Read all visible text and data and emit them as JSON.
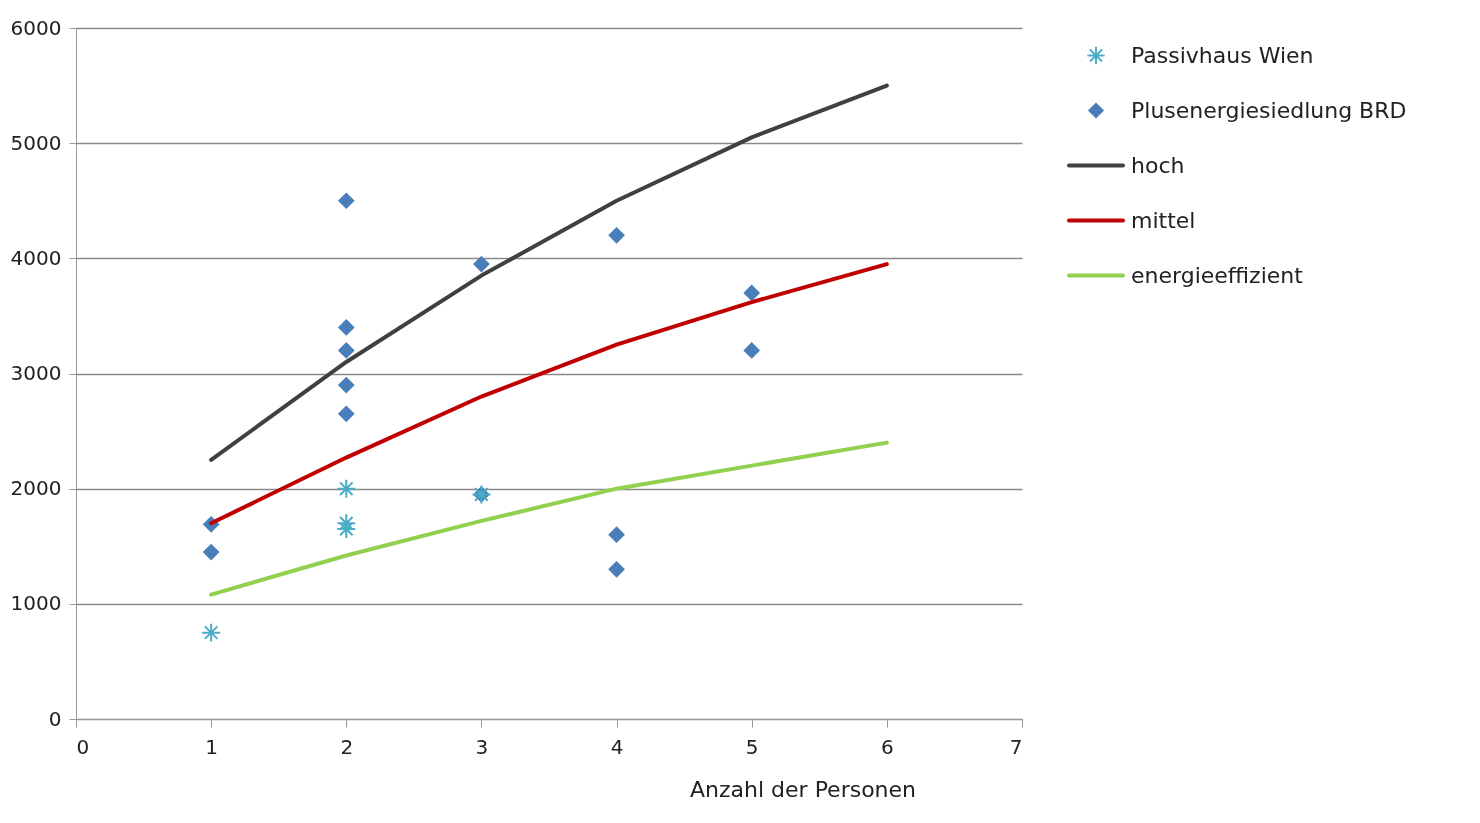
{
  "chart_data": {
    "type": "scatter",
    "xlabel": "Anzahl der Personen",
    "xlim": [
      0,
      7
    ],
    "xticks": [
      0,
      1,
      2,
      3,
      4,
      5,
      6,
      7
    ],
    "ylim": [
      0,
      6000
    ],
    "yticks": [
      0,
      1000,
      2000,
      3000,
      4000,
      5000,
      6000
    ],
    "grid": "y",
    "legend": "top right",
    "series": [
      {
        "name": "Passivhaus Wien",
        "marker": "cross",
        "color": "#4bacc6",
        "x": [
          1,
          2,
          2,
          2,
          3
        ],
        "values": [
          750,
          2000,
          1700,
          1650,
          1950
        ]
      },
      {
        "name": "Plusenergiesiedlung BRD",
        "marker": "diamond",
        "color": "#4a7ebb",
        "x": [
          1,
          1,
          2,
          2,
          2,
          2,
          2,
          3,
          3,
          4,
          4,
          4,
          5,
          5
        ],
        "values": [
          1690,
          1450,
          4500,
          3400,
          3200,
          2900,
          2650,
          3950,
          1950,
          4200,
          1600,
          1300,
          3700,
          3200
        ]
      },
      {
        "name": "hoch",
        "type": "line",
        "line_style": "solid",
        "color": "#404040",
        "x": [
          1,
          2,
          3,
          4,
          5,
          6
        ],
        "values": [
          2250,
          3100,
          3850,
          4500,
          5050,
          5500
        ]
      },
      {
        "name": "mittel",
        "type": "line",
        "line_style": "solid",
        "color": "#c00000",
        "x": [
          1,
          2,
          3,
          4,
          5,
          6
        ],
        "values": [
          1700,
          2270,
          2800,
          3250,
          3620,
          3950
        ]
      },
      {
        "name": "energieeffizient",
        "type": "line",
        "line_style": "solid",
        "color": "#92d050",
        "x": [
          1,
          2,
          3,
          4,
          5,
          6
        ],
        "values": [
          1080,
          1420,
          1720,
          2000,
          2200,
          2400
        ]
      }
    ]
  }
}
